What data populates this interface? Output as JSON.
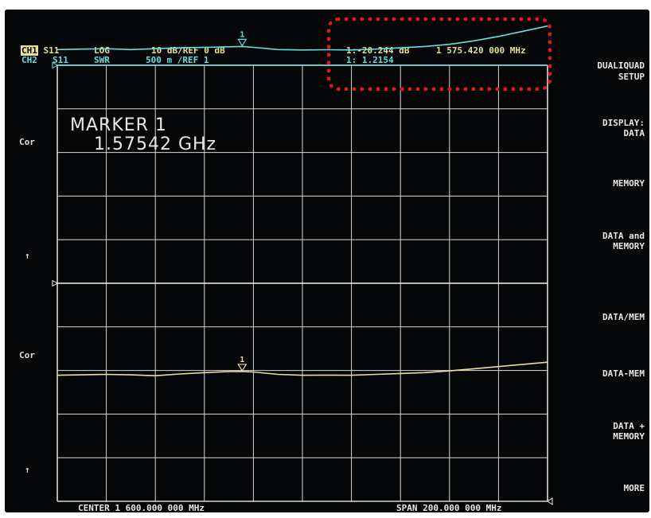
{
  "header": {
    "ch1_label": "CH1",
    "ch1_param": "S11",
    "ch1_format": "LOG",
    "ch1_scale": "10 dB/REF 0 dB",
    "ch2_label": "CH2",
    "ch2_param": "S11",
    "ch2_format": "SWR",
    "ch2_scale": "500 m /REF 1",
    "ch1_marker_readout": "1:-20.244 dB",
    "ch1_marker_freq": "1 575.420 000 MHz",
    "ch2_marker_readout": "1: 1.2154"
  },
  "side_labels": {
    "cor_upper": "Cor",
    "arrow_upper": "↑",
    "cor_lower": "Cor",
    "arrow_lower": "↑"
  },
  "marker_annotation": {
    "title": "MARKER 1",
    "value": "1.57542 GHz"
  },
  "softkeys": {
    "title_line1": "DUALIQUAD",
    "title_line2": "SETUP",
    "display_line1": "DISPLAY:",
    "display_line2": "DATA",
    "memory": "MEMORY",
    "data_and_memory_line1": "DATA and",
    "data_and_memory_line2": "MEMORY",
    "data_div_mem": "DATA/MEM",
    "data_minus_mem": "DATA-MEM",
    "data_plus_mem_line1": "DATA +",
    "data_plus_mem_line2": "MEMORY",
    "more": "MORE"
  },
  "footer": {
    "center": "CENTER 1 600.000 000 MHz",
    "span": "SPAN 200.000 000 MHz"
  },
  "colors": {
    "ch1_trace": "#e8df9a",
    "ch2_trace": "#66e0dd",
    "grid": "#d8d8d8",
    "highlight": "#e01818"
  },
  "chart_data": {
    "type": "line",
    "x_unit": "MHz",
    "xlim": [
      1500,
      1700
    ],
    "grid": true,
    "divisions": {
      "x": 10,
      "y": 10
    },
    "marker": {
      "x": 1575.42,
      "label": "1"
    },
    "series": [
      {
        "channel": "CH1",
        "scale_per_div": 10,
        "reference": 0,
        "reference_division": 5,
        "unit": "dB",
        "x": [
          1500,
          1510,
          1520,
          1530,
          1540,
          1550,
          1560,
          1570,
          1575.42,
          1580,
          1590,
          1600,
          1610,
          1620,
          1630,
          1640,
          1650,
          1660,
          1670,
          1680,
          1690,
          1700
        ],
        "y": [
          -21.1,
          -21.0,
          -20.9,
          -21.0,
          -21.2,
          -20.8,
          -20.5,
          -20.25,
          -20.244,
          -20.35,
          -20.9,
          -21.1,
          -21.05,
          -21.1,
          -20.9,
          -20.7,
          -20.5,
          -20.1,
          -19.6,
          -19.1,
          -18.6,
          -18.1
        ]
      },
      {
        "channel": "CH2",
        "scale_per_div": 0.5,
        "reference": 1,
        "reference_division": 0,
        "unit": "",
        "x": [
          1500,
          1510,
          1520,
          1530,
          1540,
          1550,
          1560,
          1570,
          1575.42,
          1580,
          1590,
          1600,
          1610,
          1620,
          1630,
          1640,
          1650,
          1660,
          1670,
          1680,
          1690,
          1700
        ],
        "y": [
          1.18,
          1.185,
          1.19,
          1.18,
          1.19,
          1.2,
          1.205,
          1.212,
          1.2154,
          1.205,
          1.18,
          1.175,
          1.178,
          1.175,
          1.185,
          1.2,
          1.215,
          1.24,
          1.28,
          1.33,
          1.39,
          1.45
        ]
      }
    ]
  }
}
